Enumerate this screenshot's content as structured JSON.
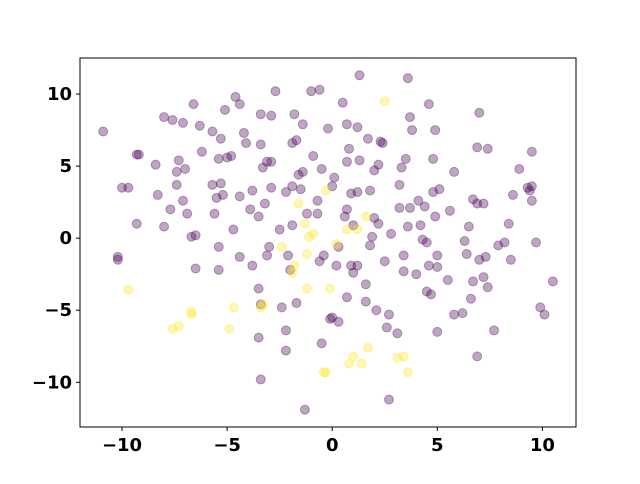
{
  "chart_data": {
    "type": "scatter",
    "xlim": [
      -12.0,
      11.6
    ],
    "ylim": [
      -13.1,
      12.5
    ],
    "xticks": [
      {
        "value": -10,
        "label": "−10"
      },
      {
        "value": -5,
        "label": "−5"
      },
      0,
      5,
      10
    ],
    "yticks": [
      {
        "value": -10,
        "label": "−10"
      },
      {
        "value": -5,
        "label": "−5"
      },
      0,
      5,
      10
    ],
    "grid": false,
    "opacity": 0.35,
    "series": [
      {
        "color": "#440154",
        "x": [
          -10.9,
          -10.0,
          -9.7,
          -9.2,
          -9.3,
          -9.3,
          -10.2,
          -10.2,
          -8.4,
          -8.0,
          -8.3,
          -8.0,
          -7.6,
          -7.7,
          -7.4,
          -7.4,
          -7.3,
          -7.1,
          -7.0,
          -7.1,
          -6.9,
          -6.7,
          -6.5,
          -6.5,
          -6.3,
          -6.2,
          -6.6,
          -5.7,
          -5.7,
          -5.6,
          -5.5,
          -5.4,
          -5.4,
          -5.4,
          -5.3,
          -5.3,
          -5.2,
          -5.1,
          -5.0,
          -4.8,
          -4.7,
          -4.6,
          -4.4,
          -4.4,
          -4.4,
          -4.2,
          -4.1,
          -3.9,
          -3.8,
          -3.8,
          -3.5,
          -3.5,
          -3.4,
          -3.4,
          -3.5,
          -3.3,
          -3.2,
          -3.1,
          -3.1,
          -3.4,
          -3.4,
          -3.0,
          -2.9,
          -2.9,
          -2.7,
          -2.9,
          -2.5,
          -2.4,
          -2.2,
          -2.2,
          -2.2,
          -2.1,
          -2.0,
          -1.9,
          -1.9,
          -1.9,
          -1.8,
          -1.7,
          -1.7,
          -1.5,
          -1.6,
          -1.4,
          -1.3,
          -1.4,
          -1.2,
          -1.0,
          -0.9,
          -0.6,
          -0.7,
          -0.6,
          -0.7,
          -0.5,
          -0.5,
          -0.4,
          -0.2,
          -0.1,
          0.0,
          0.0,
          0.1,
          0.2,
          0.3,
          0.3,
          0.5,
          0.7,
          0.6,
          0.7,
          0.7,
          0.7,
          0.8,
          0.9,
          0.9,
          1.0,
          1.0,
          1.2,
          1.2,
          1.3,
          1.2,
          1.3,
          1.6,
          1.6,
          1.7,
          1.8,
          1.8,
          2.0,
          2.0,
          1.9,
          2.1,
          2.2,
          2.2,
          2.3,
          2.5,
          2.6,
          2.4,
          2.7,
          2.8,
          2.7,
          3.1,
          3.2,
          3.2,
          3.3,
          3.4,
          3.4,
          3.5,
          3.6,
          3.6,
          3.7,
          3.7,
          3.8,
          4.0,
          4.1,
          4.2,
          4.3,
          4.4,
          4.5,
          4.6,
          4.5,
          4.6,
          4.7,
          4.8,
          4.8,
          4.9,
          4.9,
          5.0,
          5.0,
          5.0,
          5.1,
          5.5,
          5.6,
          5.8,
          5.8,
          6.2,
          6.4,
          6.3,
          6.5,
          6.6,
          6.7,
          6.7,
          6.9,
          6.9,
          6.9,
          7.2,
          7.0,
          7.0,
          7.4,
          7.2,
          7.4,
          7.3,
          7.7,
          7.9,
          8.2,
          8.4,
          8.5,
          8.6,
          8.9,
          9.3,
          9.4,
          9.5,
          9.5,
          9.5,
          9.7,
          9.9,
          10.1,
          10.5
        ],
        "y": [
          7.4,
          3.5,
          3.5,
          5.8,
          5.8,
          1.0,
          -1.3,
          -1.5,
          5.1,
          8.4,
          3.0,
          0.8,
          8.2,
          2.0,
          3.7,
          4.6,
          5.4,
          8.0,
          4.8,
          2.6,
          1.7,
          0.1,
          0.2,
          -2.1,
          7.8,
          6.0,
          9.3,
          3.7,
          7.4,
          1.7,
          2.8,
          -0.6,
          5.5,
          -2.2,
          6.9,
          3.8,
          3.0,
          8.9,
          5.6,
          5.7,
          0.6,
          9.8,
          2.9,
          9.3,
          -1.3,
          7.3,
          6.6,
          2.0,
          3.3,
          -1.9,
          -6.9,
          -3.5,
          8.6,
          6.5,
          1.5,
          4.9,
          2.4,
          5.3,
          -1.2,
          -9.8,
          -4.6,
          -0.6,
          3.5,
          8.5,
          10.2,
          5.3,
          0.6,
          -4.8,
          -6.4,
          3.2,
          -7.8,
          -1.2,
          -2.2,
          3.6,
          6.6,
          0.9,
          8.6,
          6.8,
          -4.5,
          3.4,
          4.4,
          7.9,
          -11.9,
          4.6,
          1.7,
          10.2,
          5.7,
          10.3,
          2.6,
          -1.6,
          1.7,
          4.8,
          -7.3,
          -1.2,
          7.6,
          -5.6,
          -5.5,
          3.6,
          4.2,
          -1.9,
          -0.6,
          -5.8,
          9.4,
          7.9,
          1.5,
          2.0,
          5.3,
          -4.1,
          6.2,
          -1.9,
          3.1,
          -2.4,
          0.9,
          7.7,
          3.2,
          5.4,
          -1.9,
          11.3,
          -3.2,
          -4.4,
          6.9,
          3.3,
          -0.5,
          1.4,
          4.7,
          0.1,
          -5.0,
          1.0,
          5.1,
          6.7,
          -1.6,
          -6.2,
          6.6,
          -5.3,
          0.3,
          -11.2,
          -6.6,
          3.7,
          2.1,
          4.9,
          -2.3,
          -1.2,
          5.5,
          11.1,
          0.8,
          2.1,
          8.4,
          7.5,
          -2.5,
          2.6,
          0.9,
          -0.1,
          2.2,
          -0.3,
          -1.9,
          -3.7,
          9.3,
          -3.9,
          5.5,
          3.2,
          7.5,
          1.5,
          -1.2,
          -2.0,
          -6.5,
          3.4,
          -2.9,
          1.9,
          -5.3,
          4.6,
          -5.2,
          -1.1,
          -0.2,
          0.8,
          -4.2,
          -3.0,
          2.7,
          6.3,
          -8.2,
          2.4,
          2.4,
          -1.5,
          8.7,
          6.2,
          -2.7,
          -3.4,
          -1.3,
          -6.4,
          -0.5,
          -0.3,
          1.0,
          -1.5,
          3.0,
          4.8,
          3.5,
          3.3,
          6.0,
          2.6,
          3.6,
          -0.3,
          -4.8,
          -5.3,
          -3.0
        ]
      },
      {
        "color": "#fde725",
        "x": [
          -9.7,
          -7.6,
          -7.3,
          -6.7,
          -6.7,
          -4.9,
          -4.7,
          -3.4,
          -3.3,
          -2.4,
          -1.9,
          -1.8,
          -1.2,
          -1.2,
          -1.1,
          -0.9,
          -0.3,
          -0.3,
          -0.4,
          -0.1,
          0.2,
          0.7,
          0.8,
          1.0,
          1.2,
          1.4,
          1.6,
          1.7,
          2.5,
          3.1,
          3.4,
          3.6,
          -1.6,
          -1.3
        ],
        "y": [
          -3.6,
          -6.3,
          -6.1,
          -5.1,
          -5.3,
          -6.3,
          -4.8,
          -4.8,
          -4.6,
          -0.6,
          -2.4,
          -1.9,
          -1.1,
          -3.5,
          0.1,
          0.3,
          3.3,
          -9.3,
          -9.3,
          -3.5,
          -0.4,
          0.6,
          -8.7,
          -8.2,
          0.6,
          -8.7,
          1.5,
          -7.6,
          9.5,
          -8.3,
          -8.2,
          -9.3,
          2.4,
          1.0
        ]
      }
    ]
  }
}
